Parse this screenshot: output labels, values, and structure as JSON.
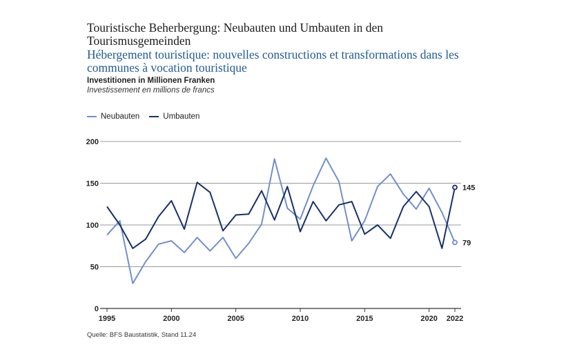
{
  "title_de": "Touristische Beherbergung: Neubauten und Umbauten in den Tourismusgemeinden",
  "title_fr": "Hébergement touristique: nouvelles constructions et transformations dans les communes à vocation touristique",
  "subtitle_de": "Investitionen in Millionen Franken",
  "subtitle_fr": "Investissement en millions de francs",
  "source": "Quelle: BFS Baustatistik, Stand 11.24",
  "chart_data": {
    "type": "line",
    "x": [
      1995,
      1996,
      1997,
      1998,
      1999,
      2000,
      2001,
      2002,
      2003,
      2004,
      2005,
      2006,
      2007,
      2008,
      2009,
      2010,
      2011,
      2012,
      2013,
      2014,
      2015,
      2016,
      2017,
      2018,
      2019,
      2020,
      2021,
      2022
    ],
    "series": [
      {
        "name": "Neubauten",
        "color": "#6f8fcb",
        "values": [
          88,
          105,
          30,
          56,
          77,
          81,
          67,
          85,
          69,
          85,
          60,
          78,
          101,
          179,
          120,
          107,
          147,
          180,
          152,
          81,
          105,
          146,
          161,
          137,
          119,
          144,
          115,
          79
        ],
        "end_label": "79"
      },
      {
        "name": "Umbauten",
        "color": "#14306a",
        "values": [
          122,
          100,
          72,
          83,
          110,
          129,
          95,
          151,
          139,
          93,
          112,
          113,
          141,
          106,
          146,
          92,
          128,
          105,
          124,
          128,
          89,
          100,
          84,
          122,
          140,
          122,
          72,
          145
        ],
        "end_label": "145"
      }
    ],
    "xticks": [
      "1995",
      "2000",
      "2005",
      "2010",
      "2015",
      "2020",
      "2022"
    ],
    "yticks": [
      "0",
      "50",
      "100",
      "150",
      "200"
    ],
    "ylim": [
      0,
      200
    ],
    "xlim": [
      1995,
      2022
    ],
    "grid": "horizontal",
    "legend": "top-left"
  }
}
